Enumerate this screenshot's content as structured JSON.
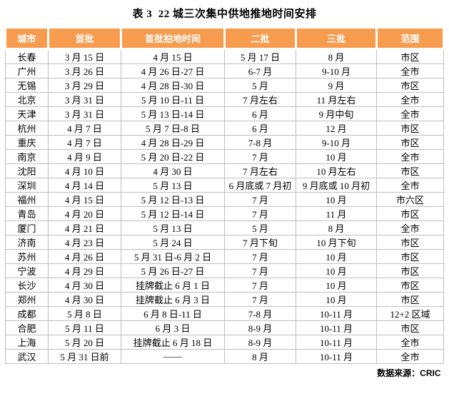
{
  "title": "表 3  22 城三次集中供地推地时间安排",
  "colors": {
    "header_bg": "#F79C4E",
    "header_text": "#FFFFFF",
    "border": "#BFBFBF",
    "body_text": "#000000",
    "page_bg": "#FFFFFF"
  },
  "table": {
    "headers": [
      "城市",
      "首批",
      "首批拍地时间",
      "二批",
      "三批",
      "范围"
    ],
    "rows": [
      [
        "长春",
        "3 月 15 日",
        "4 月 15 日",
        "5 月 17 日",
        "8 月",
        "市区"
      ],
      [
        "广州",
        "3 月 26 日",
        "4 月 26 日-27 日",
        "6-7 月",
        "9-10 月",
        "全市"
      ],
      [
        "无锡",
        "3 月 29 日",
        "4 月 28 日-30 日",
        "5 月",
        "9 月",
        "市区"
      ],
      [
        "北京",
        "3 月 31 日",
        "5 月 10 日-11 日",
        "7 月左右",
        "11 月左右",
        "全市"
      ],
      [
        "天津",
        "3 月 31 日",
        "5 月 13 日-14 日",
        "6 月",
        "9 月中旬",
        "全市"
      ],
      [
        "杭州",
        "4 月 7 日",
        "5 月 7 日-8 日",
        "6 月",
        "12 月",
        "市区"
      ],
      [
        "重庆",
        "4 月 7 日",
        "4 月 28 日-29 日",
        "7-8 月",
        "9-10 月",
        "市区"
      ],
      [
        "南京",
        "4 月 9 日",
        "5 月 20 日-22 日",
        "7 月",
        "10 月",
        "全市"
      ],
      [
        "沈阳",
        "4 月 10 日",
        "4 月 30 日",
        "7 月左右",
        "10 月左右",
        "市区"
      ],
      [
        "深圳",
        "4 月 14 日",
        "5 月 13 日",
        "6 月底或 7 月初",
        "9 月底或 10 月初",
        "全市"
      ],
      [
        "福州",
        "4 月 15 日",
        "5 月 12 日-13 日",
        "7 月",
        "10 月",
        "市六区"
      ],
      [
        "青岛",
        "4 月 20 日",
        "5 月 12 日-14 日",
        "7 月",
        "11 月",
        "市区"
      ],
      [
        "厦门",
        "4 月 21 日",
        "5 月 13 日",
        "5 月",
        "8 月",
        "全市"
      ],
      [
        "济南",
        "4 月 23 日",
        "5 月 24 日",
        "7 月下旬",
        "10 月下旬",
        "市区"
      ],
      [
        "苏州",
        "4 月 26 日",
        "5 月 31 日-6 月 2 日",
        "7 月",
        "10 月",
        "市区"
      ],
      [
        "宁波",
        "4 月 29 日",
        "5 月 26 日-27 日",
        "7 月",
        "10 月",
        "市区"
      ],
      [
        "长沙",
        "4 月 30 日",
        "挂牌截止 6 月 1 日",
        "7 月",
        "10 月",
        "市区"
      ],
      [
        "郑州",
        "4 月 30 日",
        "挂牌截止 6 月 3 日",
        "7 月",
        "10 月",
        "市区"
      ],
      [
        "成都",
        "5 月 8 日",
        "6 月 8 日-11 日",
        "7-8 月",
        "10-11 月",
        "12+2 区域"
      ],
      [
        "合肥",
        "5 月 11 日",
        "6 月 3 日",
        "8-9 月",
        "10-11 月",
        "市区"
      ],
      [
        "上海",
        "5 月 20 日",
        "挂牌截止 6 月 18 日",
        "8-9 月",
        "10-11 月",
        "全市"
      ],
      [
        "武汉",
        "5 月 31 日前",
        "——",
        "8 月",
        "10-11 月",
        "全市"
      ]
    ]
  },
  "footer": {
    "source_label": "数据来源：CRIC"
  }
}
